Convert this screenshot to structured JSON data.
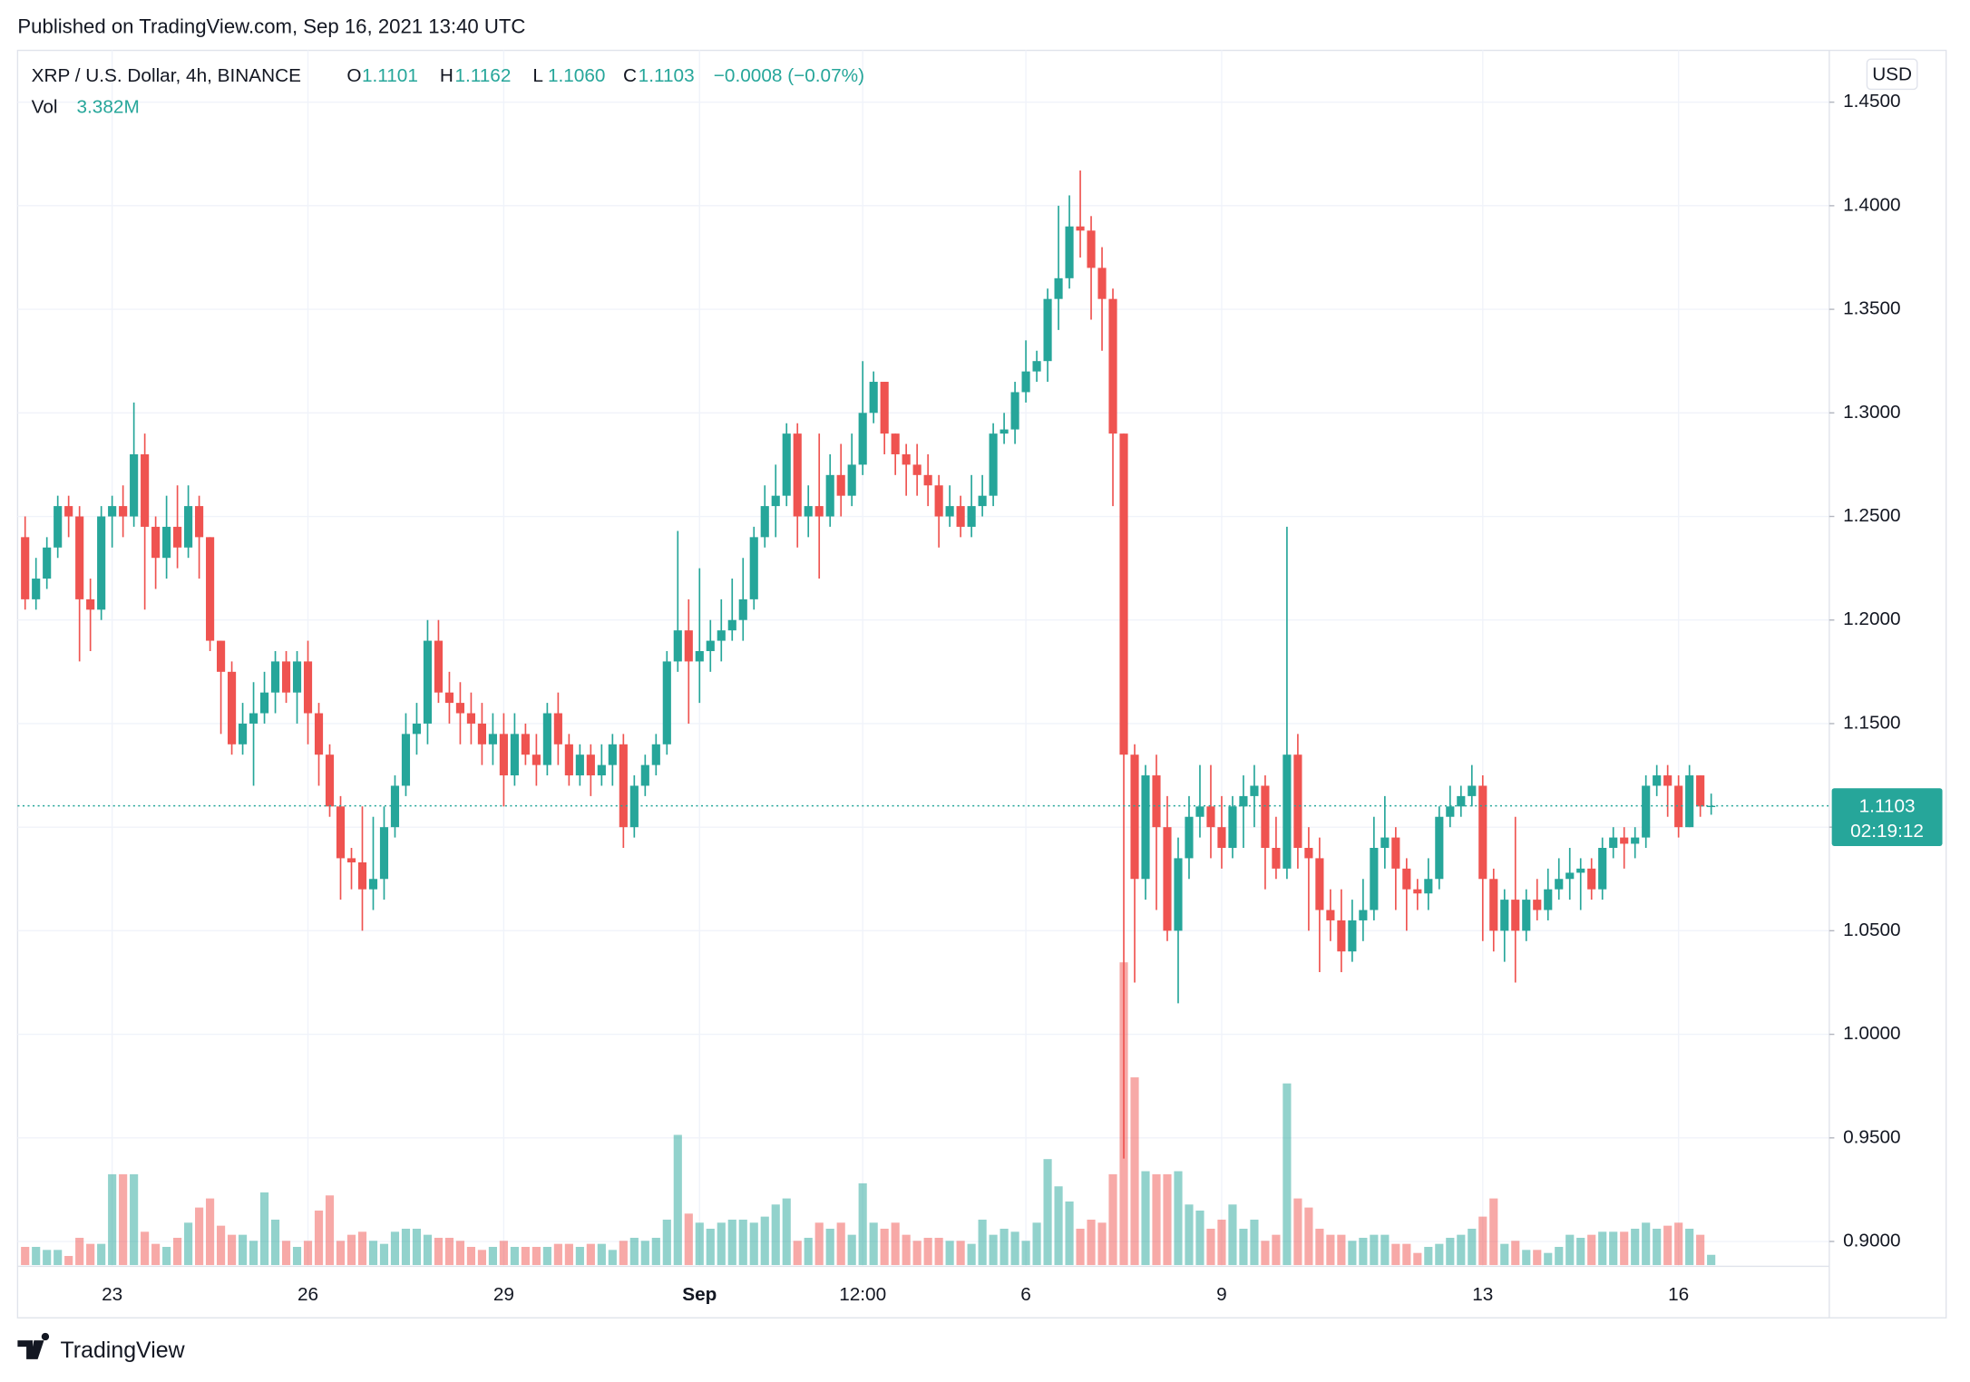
{
  "published": "Published on TradingView.com, Sep 16, 2021 13:40 UTC",
  "brand": "TradingView",
  "chart_data": {
    "type": "candlestick",
    "legend": {
      "symbol": "XRP / U.S. Dollar, 4h, BINANCE",
      "items": [
        {
          "key": "O",
          "value": "1.1101"
        },
        {
          "key": "H",
          "value": "1.1162"
        },
        {
          "key": "L",
          "value": "1.1060"
        },
        {
          "key": "C",
          "value": "1.1103"
        }
      ],
      "change": "−0.0008 (−0.07%)",
      "vol_key": "Vol",
      "vol_value": "3.382M"
    },
    "currency": "USD",
    "countdown": "02:19:12",
    "up_color": "#26a69a",
    "down_color": "#ef5350",
    "grid": true,
    "ylim": [
      0.888,
      1.475
    ],
    "yticks": [
      {
        "value": 0.9,
        "label": "0.9000"
      },
      {
        "value": 0.95,
        "label": "0.9500"
      },
      {
        "value": 1.0,
        "label": "1.0000"
      },
      {
        "value": 1.05,
        "label": "1.0500"
      },
      {
        "value": 1.1,
        "label": "1.1000"
      },
      {
        "value": 1.15,
        "label": "1.1500"
      },
      {
        "value": 1.2,
        "label": "1.2000"
      },
      {
        "value": 1.25,
        "label": "1.2500"
      },
      {
        "value": 1.3,
        "label": "1.3000"
      },
      {
        "value": 1.35,
        "label": "1.3500"
      },
      {
        "value": 1.4,
        "label": "1.4000"
      },
      {
        "value": 1.45,
        "label": "1.4500"
      }
    ],
    "categories": [
      null,
      null,
      null,
      null,
      null,
      null,
      null,
      null,
      "23",
      null,
      null,
      null,
      null,
      null,
      null,
      null,
      null,
      null,
      null,
      null,
      null,
      null,
      null,
      null,
      null,
      null,
      "26",
      null,
      null,
      null,
      null,
      null,
      null,
      null,
      null,
      null,
      null,
      null,
      null,
      null,
      null,
      null,
      null,
      null,
      "29",
      null,
      null,
      null,
      null,
      null,
      null,
      null,
      null,
      null,
      null,
      null,
      null,
      null,
      null,
      null,
      null,
      null,
      "Sep",
      null,
      null,
      null,
      null,
      null,
      null,
      null,
      null,
      null,
      null,
      null,
      null,
      null,
      null,
      "12:00",
      null,
      null,
      null,
      null,
      null,
      null,
      null,
      null,
      null,
      null,
      null,
      null,
      null,
      null,
      "6",
      null,
      null,
      null,
      null,
      null,
      null,
      null,
      null,
      null,
      null,
      null,
      null,
      null,
      null,
      null,
      null,
      null,
      "9",
      null,
      null,
      null,
      null,
      null,
      null,
      null,
      null,
      null,
      null,
      null,
      null,
      null,
      null,
      null,
      null,
      null,
      null,
      null,
      null,
      null,
      null,
      null,
      "13",
      null,
      null,
      null,
      null,
      null,
      null,
      null,
      null,
      null,
      null,
      null,
      null,
      null,
      null,
      null,
      null,
      null,
      "16",
      null,
      null,
      null
    ],
    "open": [
      1.24,
      1.21,
      1.22,
      1.235,
      1.255,
      1.25,
      1.21,
      1.205,
      1.25,
      1.255,
      1.25,
      1.28,
      1.245,
      1.23,
      1.245,
      1.235,
      1.255,
      1.24,
      1.19,
      1.175,
      1.14,
      1.15,
      1.155,
      1.165,
      1.18,
      1.165,
      1.18,
      1.155,
      1.135,
      1.11,
      1.085,
      1.083,
      1.07,
      1.075,
      1.1,
      1.12,
      1.145,
      1.15,
      1.19,
      1.165,
      1.16,
      1.155,
      1.15,
      1.14,
      1.145,
      1.125,
      1.145,
      1.135,
      1.13,
      1.155,
      1.14,
      1.125,
      1.135,
      1.125,
      1.13,
      1.14,
      1.1,
      1.12,
      1.13,
      1.14,
      1.18,
      1.195,
      1.18,
      1.185,
      1.19,
      1.195,
      1.2,
      1.21,
      1.24,
      1.255,
      1.26,
      1.29,
      1.25,
      1.255,
      1.25,
      1.27,
      1.26,
      1.275,
      1.3,
      1.315,
      1.29,
      1.28,
      1.275,
      1.27,
      1.265,
      1.25,
      1.255,
      1.245,
      1.255,
      1.26,
      1.29,
      1.292,
      1.31,
      1.32,
      1.325,
      1.355,
      1.365,
      1.39,
      1.388,
      1.37,
      1.355,
      1.29,
      1.135,
      1.075,
      1.125,
      1.1,
      1.05,
      1.085,
      1.105,
      1.11,
      1.1,
      1.09,
      1.11,
      1.115,
      1.12,
      1.09,
      1.08,
      1.135,
      1.09,
      1.085,
      1.06,
      1.055,
      1.04,
      1.055,
      1.06,
      1.09,
      1.095,
      1.08,
      1.07,
      1.068,
      1.075,
      1.105,
      1.11,
      1.115,
      1.12,
      1.075,
      1.05,
      1.065,
      1.05,
      1.065,
      1.06,
      1.07,
      1.075,
      1.078,
      1.08,
      1.07,
      1.09,
      1.095,
      1.092,
      1.095,
      1.12,
      1.125,
      1.12,
      1.1,
      1.125,
      1.1101
    ],
    "high": [
      1.25,
      1.23,
      1.24,
      1.26,
      1.26,
      1.255,
      1.22,
      1.255,
      1.26,
      1.265,
      1.305,
      1.29,
      1.25,
      1.26,
      1.265,
      1.265,
      1.26,
      1.24,
      1.19,
      1.18,
      1.16,
      1.17,
      1.175,
      1.185,
      1.185,
      1.185,
      1.19,
      1.16,
      1.14,
      1.115,
      1.09,
      1.11,
      1.105,
      1.11,
      1.125,
      1.155,
      1.16,
      1.2,
      1.2,
      1.175,
      1.17,
      1.165,
      1.16,
      1.155,
      1.155,
      1.155,
      1.15,
      1.145,
      1.16,
      1.165,
      1.145,
      1.14,
      1.14,
      1.14,
      1.145,
      1.145,
      1.125,
      1.135,
      1.145,
      1.185,
      1.243,
      1.21,
      1.225,
      1.2,
      1.21,
      1.22,
      1.23,
      1.245,
      1.265,
      1.275,
      1.295,
      1.295,
      1.265,
      1.29,
      1.28,
      1.285,
      1.29,
      1.325,
      1.32,
      1.315,
      1.29,
      1.285,
      1.285,
      1.28,
      1.27,
      1.265,
      1.26,
      1.27,
      1.27,
      1.295,
      1.3,
      1.315,
      1.335,
      1.33,
      1.36,
      1.4,
      1.405,
      1.417,
      1.395,
      1.38,
      1.36,
      1.29,
      1.14,
      1.13,
      1.135,
      1.115,
      1.095,
      1.115,
      1.13,
      1.13,
      1.115,
      1.115,
      1.125,
      1.13,
      1.125,
      1.105,
      1.245,
      1.145,
      1.1,
      1.095,
      1.07,
      1.07,
      1.065,
      1.075,
      1.105,
      1.115,
      1.1,
      1.085,
      1.075,
      1.085,
      1.11,
      1.12,
      1.12,
      1.13,
      1.125,
      1.08,
      1.07,
      1.105,
      1.07,
      1.075,
      1.08,
      1.085,
      1.09,
      1.085,
      1.085,
      1.095,
      1.1,
      1.1,
      1.1,
      1.125,
      1.13,
      1.13,
      1.125,
      1.13,
      1.125,
      1.1162
    ],
    "low": [
      1.205,
      1.205,
      1.215,
      1.23,
      1.24,
      1.18,
      1.185,
      1.2,
      1.235,
      1.24,
      1.245,
      1.205,
      1.215,
      1.22,
      1.225,
      1.23,
      1.22,
      1.185,
      1.145,
      1.135,
      1.135,
      1.12,
      1.15,
      1.155,
      1.16,
      1.15,
      1.14,
      1.12,
      1.105,
      1.065,
      1.07,
      1.05,
      1.06,
      1.065,
      1.095,
      1.115,
      1.135,
      1.14,
      1.16,
      1.15,
      1.14,
      1.14,
      1.13,
      1.13,
      1.11,
      1.12,
      1.13,
      1.12,
      1.125,
      1.13,
      1.12,
      1.12,
      1.115,
      1.12,
      1.12,
      1.09,
      1.095,
      1.115,
      1.125,
      1.135,
      1.175,
      1.15,
      1.16,
      1.175,
      1.18,
      1.19,
      1.19,
      1.205,
      1.235,
      1.24,
      1.255,
      1.235,
      1.24,
      1.22,
      1.245,
      1.25,
      1.255,
      1.27,
      1.295,
      1.28,
      1.27,
      1.26,
      1.26,
      1.255,
      1.235,
      1.245,
      1.24,
      1.24,
      1.25,
      1.255,
      1.285,
      1.285,
      1.305,
      1.315,
      1.315,
      1.34,
      1.36,
      1.375,
      1.345,
      1.33,
      1.255,
      0.94,
      1.025,
      1.065,
      1.06,
      1.045,
      1.015,
      1.075,
      1.095,
      1.085,
      1.08,
      1.085,
      1.09,
      1.1,
      1.07,
      1.075,
      1.075,
      1.08,
      1.05,
      1.03,
      1.045,
      1.03,
      1.035,
      1.045,
      1.055,
      1.08,
      1.06,
      1.05,
      1.06,
      1.06,
      1.07,
      1.1,
      1.105,
      1.11,
      1.045,
      1.04,
      1.035,
      1.025,
      1.045,
      1.055,
      1.055,
      1.065,
      1.065,
      1.06,
      1.065,
      1.065,
      1.085,
      1.08,
      1.085,
      1.09,
      1.115,
      1.105,
      1.095,
      1.1,
      1.105,
      1.106
    ],
    "close": [
      1.21,
      1.22,
      1.235,
      1.255,
      1.25,
      1.21,
      1.205,
      1.25,
      1.255,
      1.25,
      1.28,
      1.245,
      1.23,
      1.245,
      1.235,
      1.255,
      1.24,
      1.19,
      1.175,
      1.14,
      1.15,
      1.155,
      1.165,
      1.18,
      1.165,
      1.18,
      1.155,
      1.135,
      1.11,
      1.085,
      1.083,
      1.07,
      1.075,
      1.1,
      1.12,
      1.145,
      1.15,
      1.19,
      1.165,
      1.16,
      1.155,
      1.15,
      1.14,
      1.145,
      1.125,
      1.145,
      1.135,
      1.13,
      1.155,
      1.14,
      1.125,
      1.135,
      1.125,
      1.13,
      1.14,
      1.1,
      1.12,
      1.13,
      1.14,
      1.18,
      1.195,
      1.18,
      1.185,
      1.19,
      1.195,
      1.2,
      1.21,
      1.24,
      1.255,
      1.26,
      1.29,
      1.25,
      1.255,
      1.25,
      1.27,
      1.26,
      1.275,
      1.3,
      1.315,
      1.29,
      1.28,
      1.275,
      1.27,
      1.265,
      1.25,
      1.255,
      1.245,
      1.255,
      1.26,
      1.29,
      1.292,
      1.31,
      1.32,
      1.325,
      1.355,
      1.365,
      1.39,
      1.388,
      1.37,
      1.355,
      1.29,
      1.135,
      1.075,
      1.125,
      1.1,
      1.05,
      1.085,
      1.105,
      1.11,
      1.1,
      1.09,
      1.11,
      1.115,
      1.12,
      1.09,
      1.08,
      1.135,
      1.09,
      1.085,
      1.06,
      1.055,
      1.04,
      1.055,
      1.06,
      1.09,
      1.095,
      1.08,
      1.07,
      1.068,
      1.075,
      1.105,
      1.11,
      1.115,
      1.12,
      1.075,
      1.05,
      1.065,
      1.05,
      1.065,
      1.06,
      1.07,
      1.075,
      1.078,
      1.08,
      1.07,
      1.09,
      1.095,
      1.092,
      1.095,
      1.12,
      1.125,
      1.12,
      1.1,
      1.125,
      1.11,
      1.1103
    ],
    "volume": [
      6,
      6,
      5,
      5,
      3,
      9,
      7,
      7,
      30,
      30,
      30,
      11,
      7,
      6,
      9,
      14,
      19,
      22,
      13,
      10,
      10,
      8,
      24,
      15,
      8,
      6,
      8,
      18,
      23,
      8,
      10,
      11,
      8,
      7,
      11,
      12,
      12,
      10,
      9,
      9,
      8,
      6,
      5,
      6,
      8,
      6,
      6,
      6,
      6,
      7,
      7,
      6,
      7,
      7,
      5,
      8,
      9,
      8,
      9,
      15,
      43,
      17,
      14,
      12,
      14,
      15,
      15,
      14,
      16,
      20,
      22,
      8,
      9,
      14,
      12,
      14,
      10,
      27,
      14,
      12,
      14,
      10,
      8,
      9,
      9,
      8,
      8,
      7,
      15,
      10,
      12,
      11,
      8,
      14,
      35,
      26,
      21,
      12,
      15,
      14,
      30,
      100,
      62,
      31,
      30,
      30,
      31,
      20,
      18,
      12,
      15,
      20,
      12,
      15,
      8,
      10,
      60,
      22,
      19,
      12,
      10,
      10,
      8,
      9,
      10,
      10,
      7,
      7,
      4,
      6,
      7,
      9,
      10,
      12,
      16,
      22,
      7,
      8,
      5,
      5,
      4,
      6,
      10,
      9,
      10,
      11,
      11,
      11,
      12,
      14,
      12,
      13,
      14,
      12,
      10,
      3.382
    ]
  }
}
